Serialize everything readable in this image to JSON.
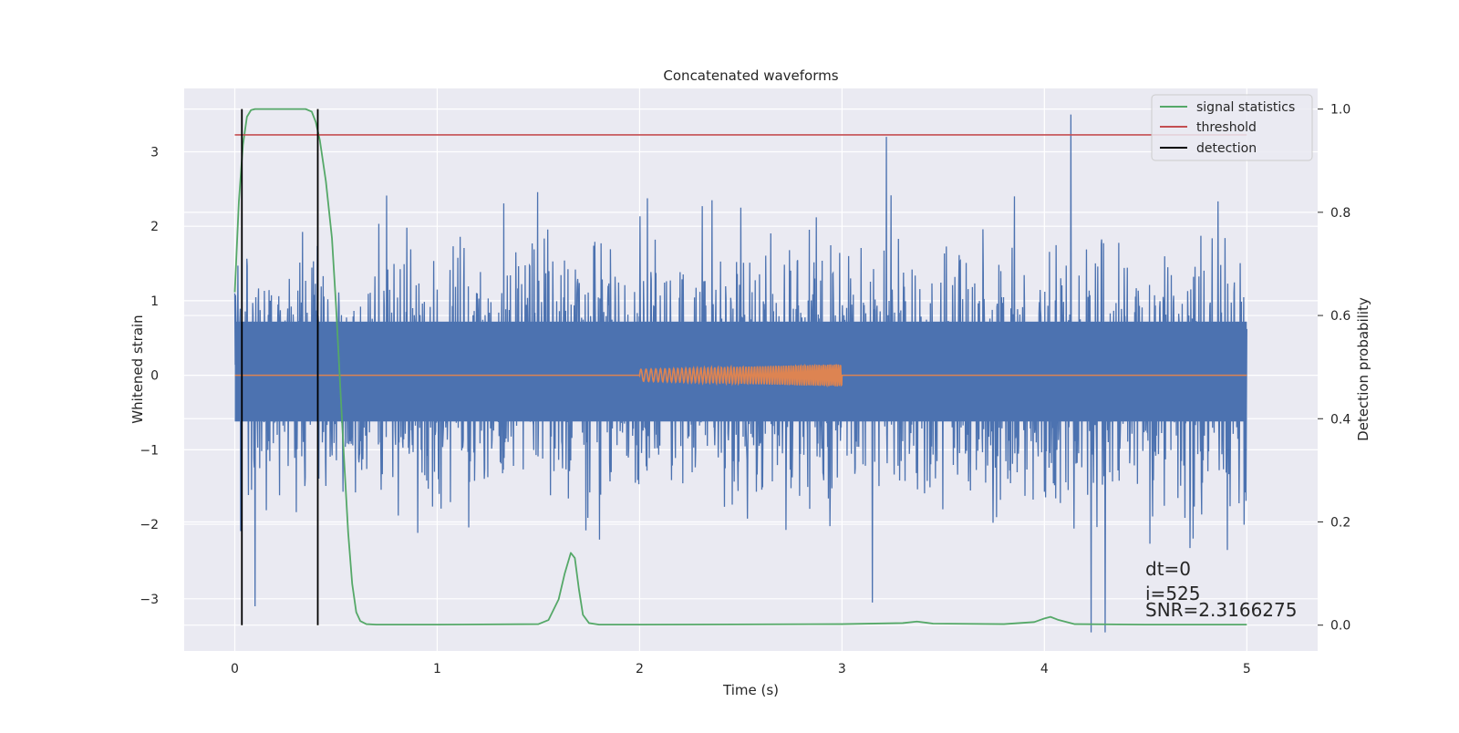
{
  "chart_data": {
    "type": "line",
    "title": "Concatenated waveforms",
    "xlabel": "Time (s)",
    "ylabel": "Whitened strain",
    "ylabel_right": "Detection probability",
    "xlim": [
      -0.25,
      5.35
    ],
    "ylim": [
      -3.7,
      3.85
    ],
    "ylim_right": [
      -0.05,
      1.04
    ],
    "x_ticks": [
      0,
      1,
      2,
      3,
      4,
      5
    ],
    "y_ticks": [
      -3,
      -2,
      -1,
      0,
      1,
      2,
      3
    ],
    "y_ticks_right": [
      0.0,
      0.2,
      0.4,
      0.6,
      0.8,
      1.0
    ],
    "x_tick_labels": [
      "0",
      "1",
      "2",
      "3",
      "4",
      "5"
    ],
    "y_tick_labels": [
      "−3",
      "−2",
      "−1",
      "0",
      "1",
      "2",
      "3"
    ],
    "y_tick_labels_right": [
      "0.0",
      "0.2",
      "0.4",
      "0.6",
      "0.8",
      "1.0"
    ],
    "grid": true,
    "legend_position": "top-right",
    "legend": [
      "signal statistics",
      "threshold",
      "detection"
    ],
    "series": [
      {
        "color": "#4c72b0",
        "axis": "left",
        "x_range": [
          0,
          5
        ],
        "band": [
          -0.62,
          0.72
        ],
        "spike_max": 2.5,
        "spike_min": -2.5,
        "notable_peaks": [
          {
            "x": 0.1,
            "y": 2.9
          },
          {
            "x": 3.22,
            "y": 3.2
          },
          {
            "x": 4.13,
            "y": 3.5
          },
          {
            "x": 4.23,
            "y": -3.45
          },
          {
            "x": 4.3,
            "y": -3.45
          },
          {
            "x": 0.1,
            "y": -3.1
          },
          {
            "x": 3.15,
            "y": -3.05
          }
        ]
      },
      {
        "color": "#dd8452",
        "axis": "left",
        "x": [
          0,
          2,
          3,
          5
        ],
        "y": [
          0,
          0,
          0,
          0
        ],
        "chirp": {
          "x_start": 2,
          "x_end": 3,
          "amp_start": 0.08,
          "amp_end": 0.15
        }
      },
      {
        "name": "signal statistics",
        "color": "#55a868",
        "axis": "right",
        "x": [
          0.0,
          0.02,
          0.04,
          0.06,
          0.08,
          0.1,
          0.15,
          0.2,
          0.3,
          0.35,
          0.38,
          0.4,
          0.42,
          0.45,
          0.48,
          0.5,
          0.52,
          0.54,
          0.56,
          0.58,
          0.6,
          0.62,
          0.65,
          0.7,
          1.0,
          1.5,
          1.55,
          1.6,
          1.63,
          1.66,
          1.68,
          1.7,
          1.72,
          1.75,
          1.8,
          2.0,
          3.0,
          3.3,
          3.37,
          3.45,
          3.8,
          3.95,
          4.0,
          4.03,
          4.07,
          4.15,
          4.5,
          5.0
        ],
        "y": [
          0.645,
          0.82,
          0.93,
          0.985,
          0.998,
          1.0,
          1.0,
          1.0,
          1.0,
          1.0,
          0.995,
          0.975,
          0.94,
          0.86,
          0.75,
          0.62,
          0.47,
          0.32,
          0.18,
          0.08,
          0.025,
          0.008,
          0.002,
          0.001,
          0.001,
          0.002,
          0.01,
          0.05,
          0.1,
          0.14,
          0.13,
          0.07,
          0.02,
          0.004,
          0.001,
          0.001,
          0.002,
          0.004,
          0.007,
          0.003,
          0.002,
          0.006,
          0.013,
          0.016,
          0.01,
          0.002,
          0.001,
          0.001
        ]
      },
      {
        "name": "threshold",
        "color": "#c44e52",
        "axis": "right",
        "x": [
          0,
          5
        ],
        "y": [
          0.95,
          0.95
        ]
      },
      {
        "name": "detection",
        "color": "#000000",
        "axis": "right",
        "type": "vlines",
        "x": [
          0.035,
          0.41
        ]
      }
    ],
    "annotations": [
      "dt=0",
      "i=525",
      "SNR=2.3166275"
    ]
  }
}
